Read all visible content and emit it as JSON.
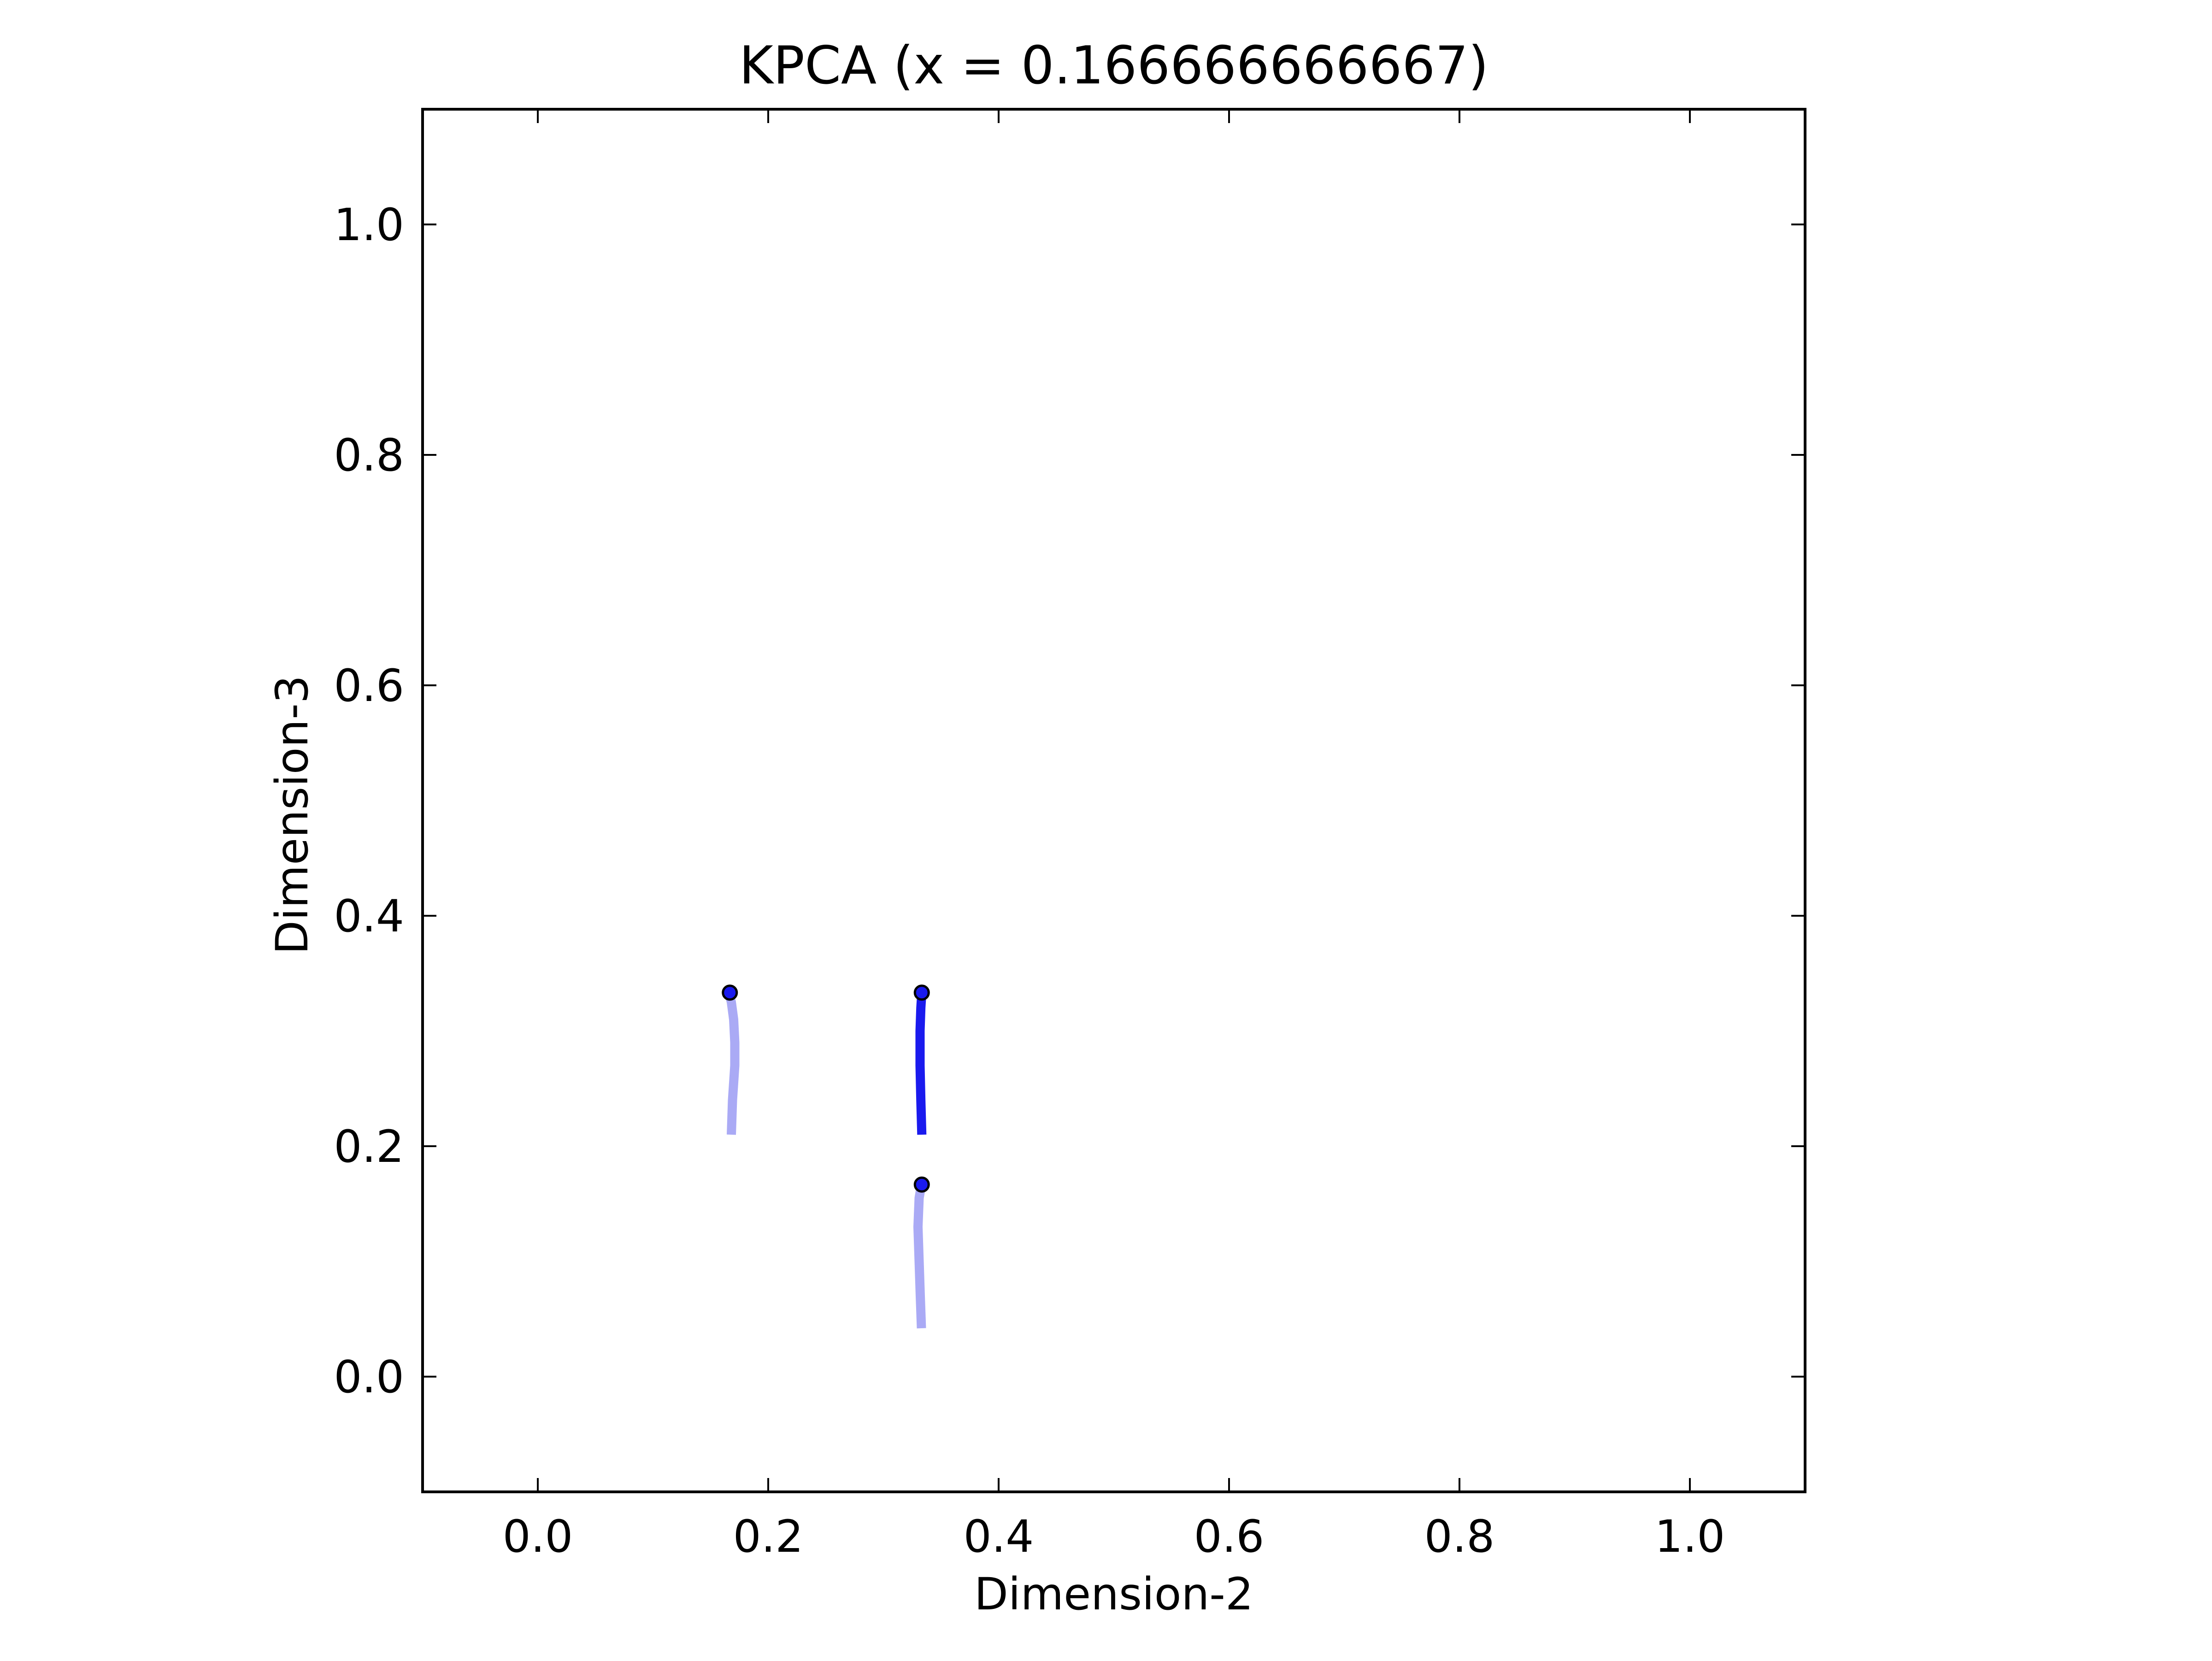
{
  "chart_data": {
    "type": "line",
    "title": "KPCA (x = 0.166666666667)",
    "xlabel": "Dimension-2",
    "ylabel": "Dimension-3",
    "xlim": [
      -0.1,
      1.1
    ],
    "ylim": [
      -0.1,
      1.1
    ],
    "xticks": [
      "0.0",
      "0.2",
      "0.4",
      "0.6",
      "0.8",
      "1.0"
    ],
    "yticks": [
      "0.0",
      "0.2",
      "0.4",
      "0.6",
      "0.8",
      "1.0"
    ],
    "grid": false,
    "legend": "none",
    "series": [
      {
        "color": "#aaaaf5",
        "x": [
          0.168,
          0.169,
          0.171,
          0.171,
          0.17,
          0.168,
          0.166
        ],
        "y": [
          0.21,
          0.24,
          0.27,
          0.29,
          0.31,
          0.325,
          0.333
        ],
        "marker": {
          "x": 0.1667,
          "y": 0.3333
        }
      },
      {
        "color": "#1a1aee",
        "x": [
          0.3333,
          0.3325,
          0.3318,
          0.3318,
          0.3325,
          0.3333
        ],
        "y": [
          0.21,
          0.24,
          0.27,
          0.3,
          0.32,
          0.333
        ],
        "marker": {
          "x": 0.3333,
          "y": 0.3333
        }
      },
      {
        "color": "#aaaaf5",
        "x": [
          0.333,
          0.332,
          0.331,
          0.33,
          0.331,
          0.333
        ],
        "y": [
          0.042,
          0.07,
          0.1,
          0.13,
          0.155,
          0.1667
        ],
        "marker": {
          "x": 0.3333,
          "y": 0.1667
        }
      }
    ],
    "marker_color": "#1a1aee"
  }
}
